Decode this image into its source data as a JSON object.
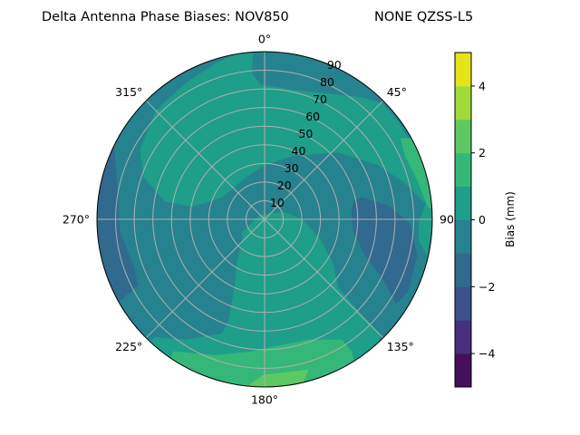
{
  "chart_data": {
    "type": "polar-contour",
    "title_left": "Delta Antenna Phase Biases: NOV850",
    "title_right": "NONE QZSS-L5",
    "theta_direction": "clockwise",
    "theta_zero": "north",
    "theta_tick_labels": [
      "0°",
      "45°",
      "90°",
      "135°",
      "180°",
      "225°",
      "270°",
      "315°"
    ],
    "theta_ticks": [
      0,
      45,
      90,
      135,
      180,
      225,
      270,
      315
    ],
    "r_ticks": [
      10,
      20,
      30,
      40,
      50,
      60,
      70,
      80,
      90
    ],
    "r_tick_labels": [
      "10",
      "20",
      "30",
      "40",
      "50",
      "60",
      "70",
      "80",
      "90"
    ],
    "r_range": [
      0,
      90
    ],
    "grid": true,
    "levels": [
      -5,
      -4,
      -3,
      -2,
      -1,
      0,
      1,
      2,
      3,
      4,
      5
    ],
    "level_colors": [
      "#450f5c",
      "#472f7d",
      "#3b518b",
      "#306a8e",
      "#26828e",
      "#1f9e89",
      "#35b779",
      "#5ec962",
      "#a0da39",
      "#e5e419"
    ],
    "background_level": [
      -1,
      0
    ],
    "regions_note": "polygon vertices in (east, north) zenith-degree units",
    "regions": [
      {
        "level": [
          0,
          1
        ],
        "points": [
          [
            87.6,
            -20
          ],
          [
            90,
            0
          ],
          [
            87.6,
            20.4
          ],
          [
            81.8,
            35
          ],
          [
            72,
            52.1
          ],
          [
            62.3,
            63.3
          ],
          [
            47.7,
            75.9
          ],
          [
            30.7,
            84.7
          ],
          [
            13.6,
            89.1
          ],
          [
            0,
            90
          ],
          [
            -15.6,
            88.6
          ],
          [
            -26.3,
            83.7
          ],
          [
            -42.3,
            73
          ],
          [
            -58.4,
            58.4
          ],
          [
            -66.7,
            37.5
          ],
          [
            -65.2,
            22.9
          ],
          [
            -53.5,
            9.7
          ],
          [
            -38.9,
            6.8
          ],
          [
            -22.9,
            11.7
          ],
          [
            -9.7,
            22.9
          ],
          [
            0,
            29.2
          ],
          [
            15.1,
            34.1
          ],
          [
            39.4,
            36
          ],
          [
            60.8,
            29.2
          ],
          [
            75.4,
            19.5
          ],
          [
            86.6,
            8.3
          ],
          [
            82.7,
            -1.5
          ],
          [
            82.7,
            -11.2
          ]
        ]
      },
      {
        "level": [
          -1,
          0
        ],
        "points": [
          [
            -5.8,
            93.4
          ],
          [
            -6.8,
            78.8
          ],
          [
            -2.4,
            72.5
          ],
          [
            20,
            69.1
          ],
          [
            52.6,
            65.7
          ],
          [
            64.7,
            61.8
          ],
          [
            72,
            64.2
          ],
          [
            52.6,
            88.6
          ],
          [
            3.9,
            95.9
          ]
        ]
      },
      {
        "level": [
          1,
          2
        ],
        "points": [
          [
            73,
            43.3
          ],
          [
            81.8,
            43.8
          ],
          [
            91.5,
            25.3
          ],
          [
            92.5,
            3.4
          ],
          [
            87.6,
            6.8
          ],
          [
            81.8,
            21.4
          ],
          [
            75.4,
            34.1
          ]
        ]
      },
      {
        "level": [
          -2,
          -1
        ],
        "points": [
          [
            47.7,
            9.7
          ],
          [
            52.6,
            11.7
          ],
          [
            67.2,
            6.8
          ],
          [
            78.3,
            -2.9
          ],
          [
            81.8,
            -19.5
          ],
          [
            76.9,
            -38.9
          ],
          [
            70.6,
            -45.3
          ],
          [
            63.7,
            -32.1
          ],
          [
            54,
            -19.5
          ],
          [
            47.7,
            -6.3
          ],
          [
            46.7,
            3.4
          ]
        ]
      },
      {
        "level": [
          -2,
          -1
        ],
        "points": [
          [
            -81.3,
            43.8
          ],
          [
            -79.8,
            26.3
          ],
          [
            -77.9,
            -6.3
          ],
          [
            -70.1,
            -25.8
          ],
          [
            -68.1,
            -35.5
          ],
          [
            -77.9,
            -43.8
          ],
          [
            -93.4,
            -43.8
          ],
          [
            -93.4,
            43.8
          ]
        ]
      },
      {
        "level": [
          0,
          1
        ],
        "points": [
          [
            -12.2,
            -7.3
          ],
          [
            -2.4,
            2.4
          ],
          [
            10.2,
            3.9
          ],
          [
            20,
            0
          ],
          [
            29.7,
            -10.2
          ],
          [
            36.5,
            -23.4
          ],
          [
            39.4,
            -36.5
          ],
          [
            49.1,
            -47.7
          ],
          [
            62.3,
            -62.3
          ],
          [
            57.4,
            -76.9
          ],
          [
            38,
            -86.6
          ],
          [
            0,
            -96.3
          ],
          [
            -39.9,
            -86.6
          ],
          [
            -64.2,
            -67.2
          ],
          [
            -58.4,
            -63.3
          ],
          [
            -42.3,
            -64.7
          ],
          [
            -22.9,
            -61.3
          ],
          [
            -19.5,
            -55
          ],
          [
            -16.5,
            -38.9
          ],
          [
            -14.6,
            -22.4
          ],
          [
            -11.7,
            -9.7
          ]
        ]
      },
      {
        "level": [
          1,
          2
        ],
        "points": [
          [
            -52.1,
            -76.9
          ],
          [
            -48.7,
            -71
          ],
          [
            -26.3,
            -73
          ],
          [
            -6.8,
            -71
          ],
          [
            -1,
            -69.6
          ],
          [
            23.4,
            -64.7
          ],
          [
            41.4,
            -64.7
          ],
          [
            46.7,
            -71
          ],
          [
            48.7,
            -79.3
          ],
          [
            3.9,
            -98.8
          ],
          [
            -44.8,
            -96.3
          ]
        ]
      },
      {
        "level": [
          2,
          3
        ],
        "points": [
          [
            -8.3,
            -89.1
          ],
          [
            -1,
            -83.7
          ],
          [
            23.4,
            -80.8
          ],
          [
            20,
            -89.1
          ],
          [
            3.9,
            -96.3
          ]
        ]
      }
    ],
    "colorbar": {
      "label": "Bias (mm)",
      "range": [
        -5,
        5
      ],
      "ticks": [
        -4,
        -2,
        0,
        2,
        4
      ],
      "tick_labels": [
        "−4",
        "−2",
        "0",
        "2",
        "4"
      ]
    }
  }
}
